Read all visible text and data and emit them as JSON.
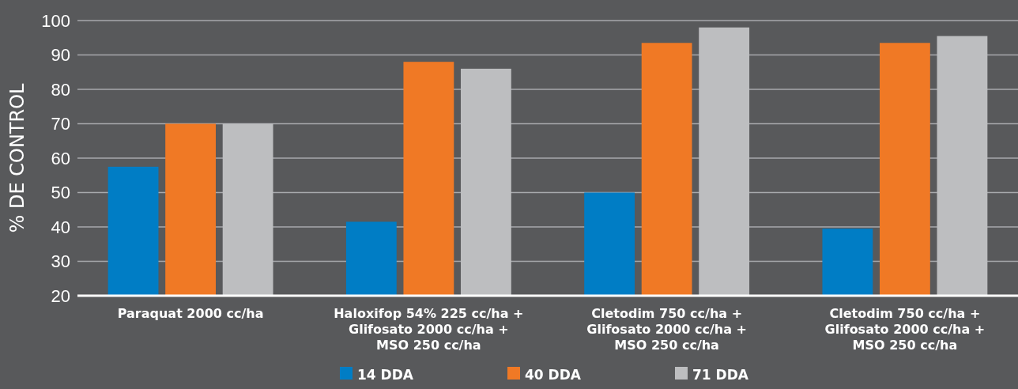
{
  "chart_data": {
    "type": "bar",
    "ylabel": "% DE CONTROL",
    "categories": [
      "Paraquat 2000 cc/ha",
      "Haloxifop 54% 225 cc/ha + Glifosato 2000 cc/ha + MSO 250 cc/ha",
      "Cletodim 750 cc/ha + Glifosato 2000 cc/ha + MSO 250 cc/ha",
      "Cletodim 750 cc/ha + Glifosato 2000 cc/ha + MSO 250 cc/ha"
    ],
    "series": [
      {
        "name": "14 DDA",
        "color": "#007dc5",
        "values": [
          57.5,
          41.5,
          50,
          39.5
        ]
      },
      {
        "name": "40 DDA",
        "color": "#f07925",
        "values": [
          70,
          88,
          93.5,
          93.5
        ]
      },
      {
        "name": "71 DDA",
        "color": "#bdbec0",
        "values": [
          70,
          86,
          98,
          95.5
        ]
      }
    ],
    "ylim": [
      20,
      100
    ],
    "yticks": [
      20,
      30,
      40,
      50,
      60,
      70,
      80,
      90,
      100
    ],
    "grid": "y",
    "legend": "bottom"
  }
}
